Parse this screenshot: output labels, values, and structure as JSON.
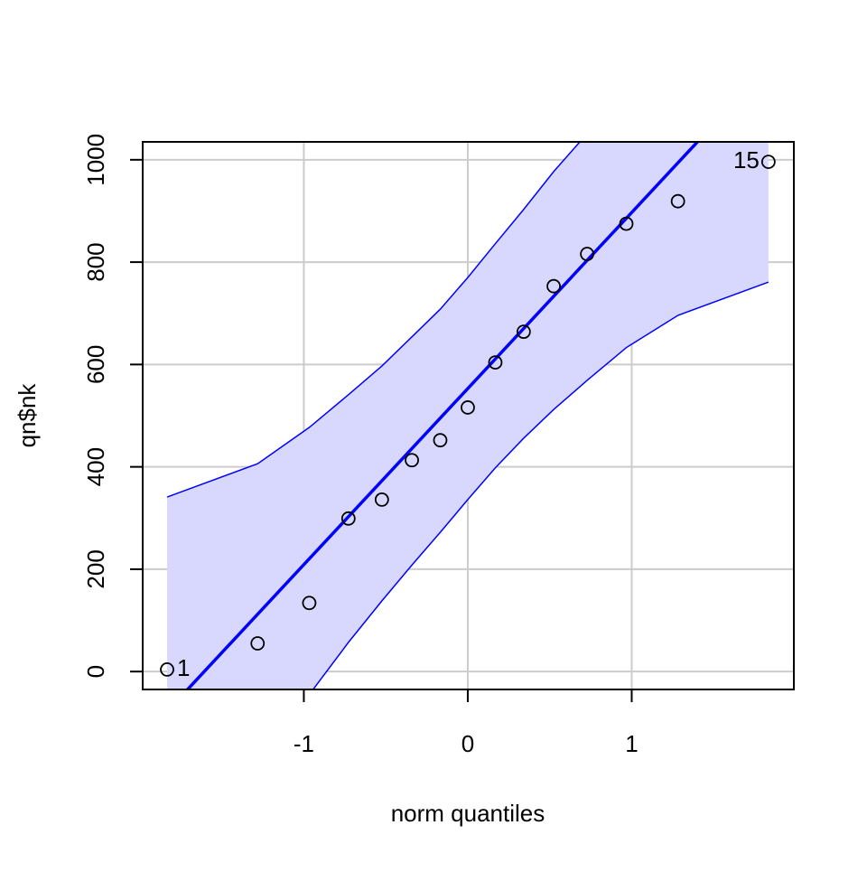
{
  "chart_data": {
    "type": "qq",
    "x_label": "norm quantiles",
    "y_label": "qn$nk",
    "x": [
      -1.834,
      -1.282,
      -0.967,
      -0.728,
      -0.524,
      -0.341,
      -0.168,
      0,
      0.168,
      0.341,
      0.524,
      0.728,
      0.967,
      1.282,
      1.834
    ],
    "values": [
      4,
      55,
      134,
      299,
      336,
      413,
      452,
      516,
      604,
      664,
      753,
      816,
      875,
      919,
      996
    ],
    "point_labels": [
      "1",
      null,
      null,
      null,
      null,
      null,
      null,
      null,
      null,
      null,
      null,
      null,
      null,
      null,
      "15"
    ],
    "line": {
      "intercept": 553,
      "slope": 344,
      "color": "#0000ff"
    },
    "envelope": {
      "upper": [
        341,
        406,
        477,
        541,
        597,
        654,
        708,
        770,
        836,
        903,
        977,
        1051,
        1130,
        1250,
        1450
      ],
      "lower": [
        -330,
        -200,
        -45,
        57,
        138,
        208,
        272,
        336,
        398,
        456,
        512,
        569,
        633,
        696,
        761
      ],
      "color": "#0000ff",
      "fill": "#d8d8ff"
    },
    "xlim": [
      -1.983,
      1.989
    ],
    "ylim": [
      -35,
      1035
    ],
    "xticks": [
      -1,
      0,
      1
    ],
    "yticks": [
      0,
      200,
      400,
      600,
      800,
      1000
    ],
    "grid": true
  }
}
